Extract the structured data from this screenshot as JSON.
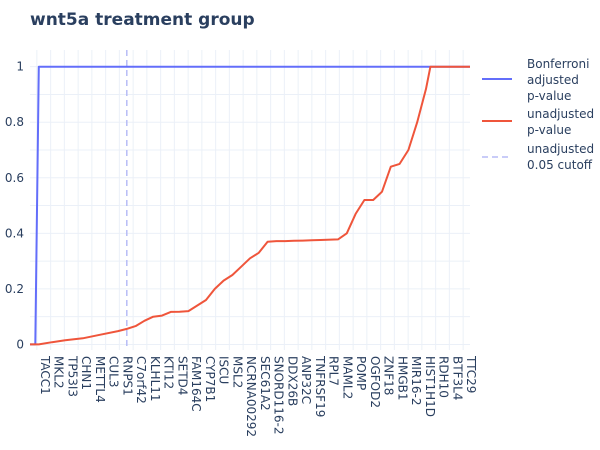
{
  "chart_data": {
    "type": "line",
    "title": "wnt5a treatment group",
    "xlabel": "",
    "ylabel": "",
    "ylim": [
      0,
      1
    ],
    "y_ticks": [
      0,
      0.2,
      0.4,
      0.6,
      0.8,
      1
    ],
    "y_tick_labels": [
      "0",
      "0.2",
      "0.4",
      "0.6",
      "0.8",
      "1"
    ],
    "x_tick_labels": [
      "TACC1",
      "MKL2",
      "TP53I3",
      "CHN1",
      "METTL4",
      "CUL3",
      "RNPS1",
      "C7orf42",
      "KLHL11",
      "KTI12",
      "SETD4",
      "FAM164C",
      "CYP7B1",
      "ISCU",
      "MSL2",
      "NCRNA00292",
      "SEC61A2",
      "SNORD116-2",
      "DDX26B",
      "ANP32C",
      "TNFRSF19",
      "RPL7",
      "MAML2",
      "POMP",
      "OGFOD2",
      "ZNF18",
      "HMGB1",
      "MIR16-2",
      "HIST1H1D",
      "RDH10",
      "BTF3L4",
      "TTC29"
    ],
    "grid": true,
    "legend_placement": "right",
    "cutoff_label_position": 0.22,
    "colors": {
      "bonferroni": "#636efa",
      "unadjusted": "#EF553B",
      "cutoff": "#b7bcf5",
      "grid": "#ebf0f8",
      "text": "#2a3f5f"
    },
    "series": [
      {
        "name": "Bonferroni adjusted p-value",
        "x": [
          0,
          0.012,
          0.02,
          1
        ],
        "values": [
          0,
          0,
          1,
          1
        ]
      },
      {
        "name": "unadjusted p-value",
        "x": [
          0,
          0.02,
          0.05,
          0.08,
          0.12,
          0.16,
          0.2,
          0.22,
          0.24,
          0.26,
          0.28,
          0.3,
          0.32,
          0.34,
          0.36,
          0.4,
          0.42,
          0.44,
          0.46,
          0.48,
          0.5,
          0.52,
          0.54,
          0.56,
          0.58,
          0.6,
          0.62,
          0.64,
          0.66,
          0.7,
          0.72,
          0.74,
          0.76,
          0.78,
          0.8,
          0.82,
          0.84,
          0.86,
          0.88,
          0.9,
          0.91,
          1
        ],
        "values": [
          0,
          0.0,
          0.008,
          0.015,
          0.022,
          0.035,
          0.048,
          0.056,
          0.066,
          0.085,
          0.1,
          0.104,
          0.117,
          0.118,
          0.12,
          0.16,
          0.2,
          0.23,
          0.25,
          0.28,
          0.31,
          0.33,
          0.37,
          0.372,
          0.372,
          0.373,
          0.374,
          0.375,
          0.376,
          0.378,
          0.4,
          0.47,
          0.52,
          0.52,
          0.55,
          0.64,
          0.65,
          0.7,
          0.8,
          0.92,
          1.0,
          1.0
        ]
      }
    ]
  },
  "legend": {
    "bonferroni_lines": [
      "Bonferroni",
      "adjusted",
      "p-value"
    ],
    "unadjusted_lines": [
      "unadjusted",
      "p-value"
    ],
    "cutoff_lines": [
      "unadjusted",
      "0.05 cutoff"
    ]
  }
}
